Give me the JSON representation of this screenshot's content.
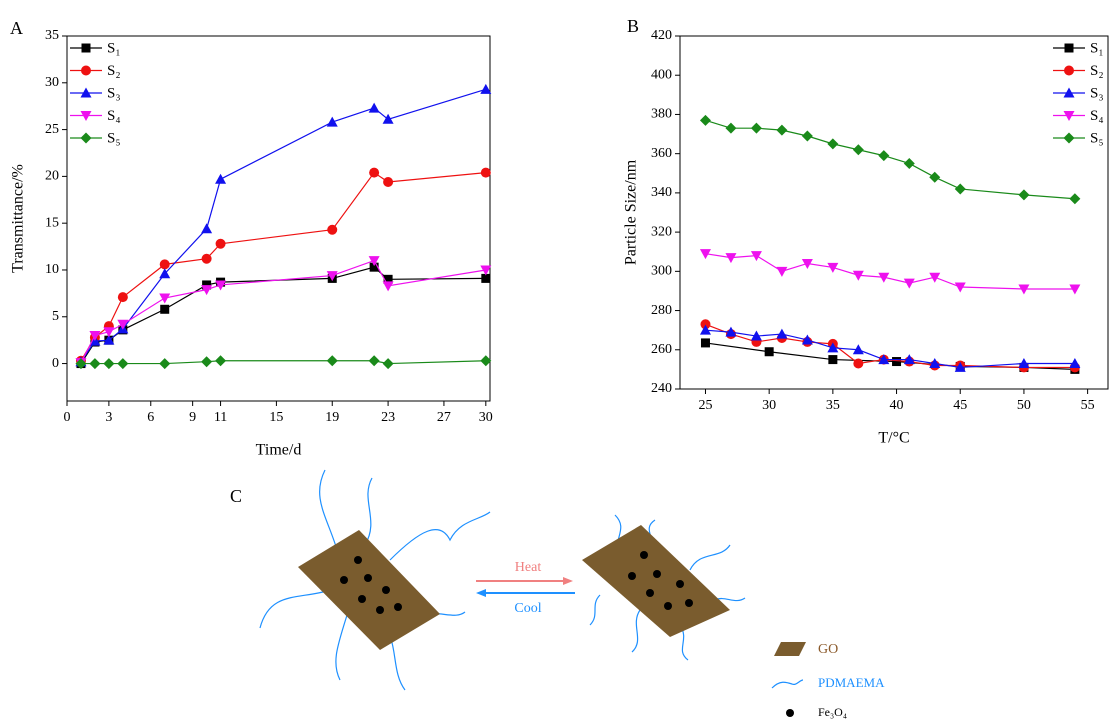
{
  "chart_data": [
    {
      "type": "line",
      "panel_label": "A",
      "x_label": "Time/d",
      "y_label": "Transmittance/%",
      "x": [
        1,
        2,
        3,
        4,
        7,
        10,
        11,
        19,
        22,
        23,
        30
      ],
      "xlim": [
        0,
        30.3
      ],
      "xticks": [
        0,
        3,
        6,
        9,
        11,
        15,
        19,
        23,
        27,
        30
      ],
      "ylim": [
        -4,
        35
      ],
      "yticks": [
        0,
        5,
        10,
        15,
        20,
        25,
        30,
        35
      ],
      "legend": "upper left",
      "series": [
        {
          "name": "S₁",
          "color": "#000000",
          "marker": "square",
          "values": [
            0,
            2.3,
            2.5,
            3.6,
            5.8,
            8.4,
            8.7,
            9.1,
            10.3,
            9.0,
            9.1
          ]
        },
        {
          "name": "S₂",
          "color": "#ee1111",
          "marker": "circle",
          "values": [
            0.3,
            2.8,
            4.0,
            7.1,
            10.6,
            11.2,
            12.8,
            14.3,
            20.4,
            19.4,
            20.4
          ]
        },
        {
          "name": "S₃",
          "color": "#1111ee",
          "marker": "triangle-up",
          "values": [
            0.2,
            2.4,
            2.5,
            3.7,
            9.6,
            14.4,
            19.7,
            25.8,
            27.3,
            26.1,
            29.3
          ]
        },
        {
          "name": "S₄",
          "color": "#ee11ee",
          "marker": "triangle-down",
          "values": [
            0.1,
            3.0,
            3.4,
            4.2,
            7.0,
            7.9,
            8.4,
            9.4,
            11.0,
            8.3,
            10.0
          ]
        },
        {
          "name": "S₅",
          "color": "#1a8a1a",
          "marker": "diamond",
          "values": [
            0.0,
            0.0,
            0.0,
            0.0,
            0.0,
            0.2,
            0.3,
            0.3,
            0.3,
            0.0,
            0.3
          ]
        }
      ]
    },
    {
      "type": "line",
      "panel_label": "B",
      "x_label": "T/°C",
      "y_label": "Particle Size/nm",
      "xlim": [
        23,
        56.6
      ],
      "xticks": [
        25,
        30,
        35,
        40,
        45,
        50,
        55
      ],
      "ylim": [
        240,
        420
      ],
      "yticks": [
        240,
        260,
        280,
        300,
        320,
        340,
        360,
        380,
        400,
        420
      ],
      "legend": "upper right",
      "series": [
        {
          "name": "S₁",
          "color": "#000000",
          "marker": "square",
          "x": [
            25,
            30,
            35,
            40,
            45,
            50,
            54
          ],
          "values": [
            263.5,
            259,
            255,
            254,
            251.5,
            251,
            250
          ]
        },
        {
          "name": "S₂",
          "color": "#ee1111",
          "marker": "circle",
          "x": [
            25,
            27,
            29,
            31,
            33,
            35,
            37,
            39,
            41,
            43,
            45,
            50,
            54
          ],
          "values": [
            273,
            268,
            264,
            266,
            264,
            263,
            253,
            255,
            254,
            252,
            252,
            251,
            251
          ]
        },
        {
          "name": "S₃",
          "color": "#1111ee",
          "marker": "triangle-up",
          "x": [
            25,
            27,
            29,
            31,
            33,
            35,
            37,
            39,
            41,
            43,
            45,
            50,
            54
          ],
          "values": [
            270,
            269,
            267,
            268,
            265,
            261,
            260,
            255,
            255,
            253,
            251,
            253,
            253
          ]
        },
        {
          "name": "S₄",
          "color": "#ee11ee",
          "marker": "triangle-down",
          "x": [
            25,
            27,
            29,
            31,
            33,
            35,
            37,
            39,
            41,
            43,
            45,
            50,
            54
          ],
          "values": [
            309,
            307,
            308,
            300,
            304,
            302,
            298,
            297,
            294,
            297,
            292,
            291,
            291
          ]
        },
        {
          "name": "S₅",
          "color": "#1a8a1a",
          "marker": "diamond",
          "x": [
            25,
            27,
            29,
            31,
            33,
            35,
            37,
            39,
            41,
            43,
            45,
            50,
            54
          ],
          "values": [
            377,
            373,
            373,
            372,
            369,
            365,
            362,
            359,
            355,
            348,
            342,
            339,
            337
          ]
        }
      ]
    }
  ],
  "diagram": {
    "panel_label": "C",
    "arrows": {
      "heat": "Heat",
      "cool": "Cool"
    },
    "legend": {
      "go": "GO",
      "polymer": "PDMAEMA",
      "particle": "Fe₃O₄"
    }
  }
}
